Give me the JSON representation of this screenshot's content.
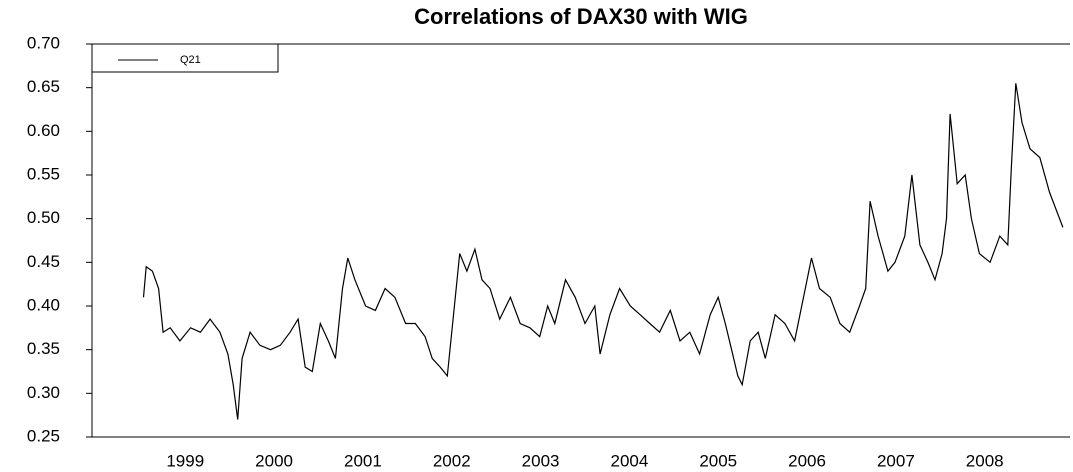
{
  "chart_data": {
    "type": "line",
    "title": "Correlations of DAX30 with WIG",
    "x": [
      1998.53,
      1998.56,
      1998.63,
      1998.7,
      1998.75,
      1998.83,
      1998.94,
      1999.06,
      1999.17,
      1999.28,
      1999.39,
      1999.48,
      1999.54,
      1999.59,
      1999.64,
      1999.73,
      1999.84,
      1999.96,
      2000.07,
      2000.18,
      2000.27,
      2000.35,
      2000.43,
      2000.52,
      2000.61,
      2000.69,
      2000.77,
      2000.83,
      2000.91,
      2001.03,
      2001.14,
      2001.25,
      2001.36,
      2001.48,
      2001.59,
      2001.7,
      2001.78,
      2001.87,
      2001.95,
      2002.04,
      2002.09,
      2002.17,
      2002.26,
      2002.34,
      2002.43,
      2002.54,
      2002.66,
      2002.77,
      2002.88,
      2002.99,
      2003.08,
      2003.16,
      2003.28,
      2003.39,
      2003.5,
      2003.61,
      2003.67,
      2003.78,
      2003.89,
      2004.01,
      2004.12,
      2004.23,
      2004.34,
      2004.46,
      2004.57,
      2004.68,
      2004.79,
      2004.91,
      2005.0,
      2005.08,
      2005.15,
      2005.22,
      2005.27,
      2005.36,
      2005.45,
      2005.53,
      2005.64,
      2005.75,
      2005.86,
      2005.98,
      2006.05,
      2006.14,
      2006.26,
      2006.37,
      2006.48,
      2006.59,
      2006.66,
      2006.71,
      2006.8,
      2006.91,
      2006.99,
      2007.1,
      2007.18,
      2007.27,
      2007.36,
      2007.44,
      2007.52,
      2007.57,
      2007.61,
      2007.69,
      2007.78,
      2007.85,
      2007.94,
      2008.06,
      2008.17,
      2008.26,
      2008.3,
      2008.35,
      2008.42,
      2008.51,
      2008.62,
      2008.73,
      2008.88
    ],
    "series": [
      {
        "name": "Q21",
        "color": "#000000",
        "values": [
          0.41,
          0.445,
          0.44,
          0.42,
          0.37,
          0.375,
          0.36,
          0.375,
          0.37,
          0.385,
          0.37,
          0.345,
          0.31,
          0.27,
          0.34,
          0.37,
          0.355,
          0.35,
          0.355,
          0.37,
          0.385,
          0.33,
          0.325,
          0.38,
          0.36,
          0.34,
          0.42,
          0.455,
          0.43,
          0.4,
          0.395,
          0.42,
          0.41,
          0.38,
          0.38,
          0.365,
          0.34,
          0.33,
          0.32,
          0.41,
          0.46,
          0.44,
          0.465,
          0.43,
          0.42,
          0.385,
          0.41,
          0.38,
          0.375,
          0.365,
          0.4,
          0.38,
          0.43,
          0.41,
          0.38,
          0.4,
          0.345,
          0.39,
          0.42,
          0.4,
          0.39,
          0.38,
          0.37,
          0.395,
          0.36,
          0.37,
          0.345,
          0.39,
          0.41,
          0.38,
          0.35,
          0.32,
          0.31,
          0.36,
          0.37,
          0.34,
          0.39,
          0.38,
          0.36,
          0.42,
          0.455,
          0.42,
          0.41,
          0.38,
          0.37,
          0.4,
          0.42,
          0.52,
          0.48,
          0.44,
          0.45,
          0.48,
          0.55,
          0.47,
          0.45,
          0.43,
          0.46,
          0.5,
          0.62,
          0.54,
          0.55,
          0.5,
          0.46,
          0.45,
          0.48,
          0.47,
          0.56,
          0.655,
          0.61,
          0.58,
          0.57,
          0.53,
          0.49
        ]
      }
    ],
    "xlim": [
      1997.95,
      2008.96
    ],
    "xticks": [
      1999,
      2000,
      2001,
      2002,
      2003,
      2004,
      2005,
      2006,
      2007,
      2008
    ],
    "ylim": [
      0.25,
      0.7
    ],
    "yticks": [
      0.25,
      {
        "value": 0.3,
        "label": "0.30"
      },
      0.35,
      {
        "value": 0.4,
        "label": "0.40"
      },
      0.45,
      {
        "value": 0.5,
        "label": "0.50"
      },
      0.55,
      {
        "value": 0.6,
        "label": "0.60"
      },
      0.65,
      {
        "value": 0.7,
        "label": "0.70"
      }
    ],
    "legend": "top-left"
  }
}
